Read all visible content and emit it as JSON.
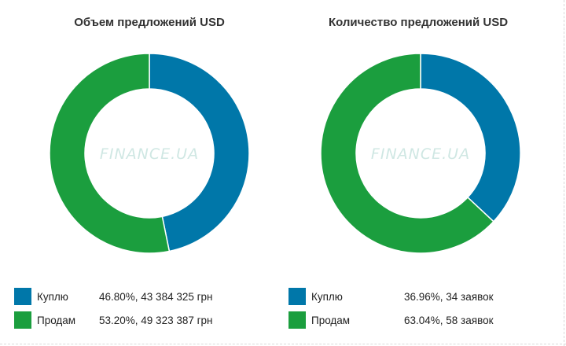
{
  "chart_data": [
    {
      "type": "pie",
      "title": "Объем предложений USD",
      "watermark": "FINANCE.UA",
      "categories": [
        "Куплю",
        "Продам"
      ],
      "values": [
        46.8,
        53.2
      ],
      "colors": [
        "#0077a9",
        "#1b9e3e"
      ],
      "legend": [
        {
          "label": "Куплю",
          "value": "46.80%, 43 384 325 грн"
        },
        {
          "label": "Продам",
          "value": "53.20%, 49 323 387 грн"
        }
      ]
    },
    {
      "type": "pie",
      "title": "Количество предложений USD",
      "watermark": "FINANCE.UA",
      "categories": [
        "Куплю",
        "Продам"
      ],
      "values": [
        36.96,
        63.04
      ],
      "colors": [
        "#0077a9",
        "#1b9e3e"
      ],
      "legend": [
        {
          "label": "Куплю",
          "value": "36.96%, 34 заявок"
        },
        {
          "label": "Продам",
          "value": "63.04%, 58 заявок"
        }
      ]
    }
  ]
}
